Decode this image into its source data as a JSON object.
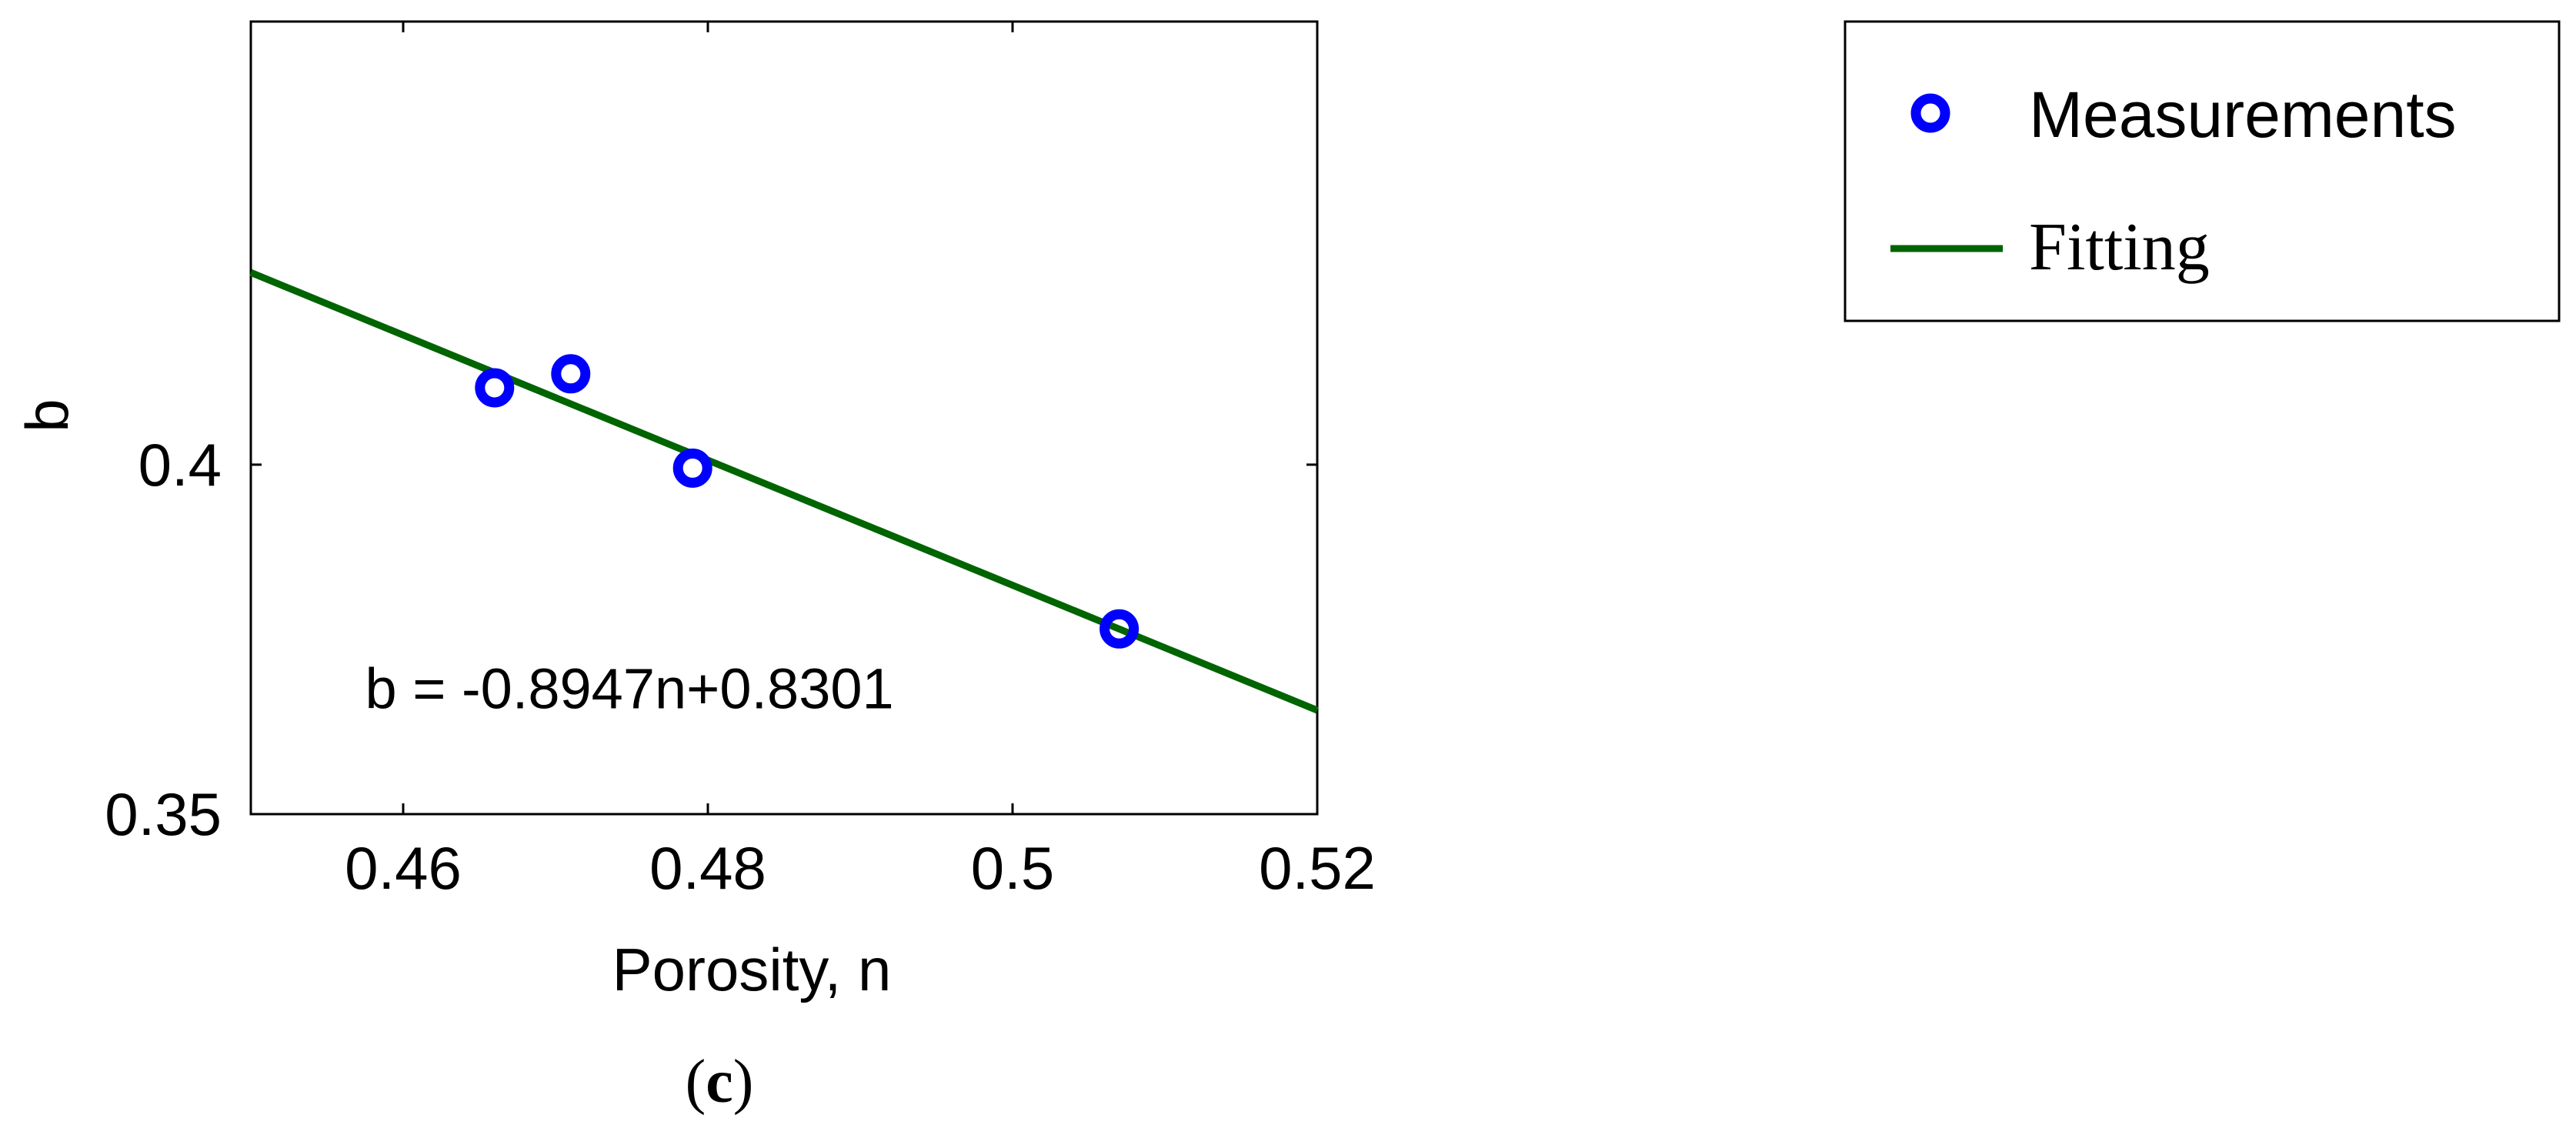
{
  "chart_data": {
    "type": "scatter",
    "xlabel": "Porosity, n",
    "ylabel": "b",
    "xlim": [
      0.45,
      0.52
    ],
    "ylim": [
      0.35,
      0.4634
    ],
    "x_ticks": [
      0.46,
      0.48,
      0.5,
      0.52
    ],
    "x_tick_labels": [
      "0.46",
      "0.48",
      "0.5",
      "0.52"
    ],
    "y_ticks": [
      0.35,
      0.4
    ],
    "y_tick_labels": [
      "0.35",
      "0.4"
    ],
    "grid": false,
    "legend_position": "outside-top-right",
    "series": [
      {
        "name": "Measurements",
        "kind": "scatter",
        "marker": "circle-open",
        "color": "#0000ff",
        "points": [
          {
            "x": 0.466,
            "y": 0.411
          },
          {
            "x": 0.471,
            "y": 0.413
          },
          {
            "x": 0.479,
            "y": 0.3995
          },
          {
            "x": 0.507,
            "y": 0.3765
          }
        ]
      },
      {
        "name": "Fitting",
        "kind": "line",
        "color": "#006400",
        "slope": -0.8947,
        "intercept": 0.8301,
        "x_range": [
          0.45,
          0.52
        ]
      }
    ],
    "annotation": {
      "text": "b = -0.8947n+0.8301",
      "x": 0.4575,
      "y": 0.368
    }
  },
  "legend": {
    "items": [
      {
        "label": "Measurements"
      },
      {
        "label": "Fitting"
      }
    ]
  },
  "caption": {
    "open": "(",
    "letter": "c",
    "close": ")"
  }
}
